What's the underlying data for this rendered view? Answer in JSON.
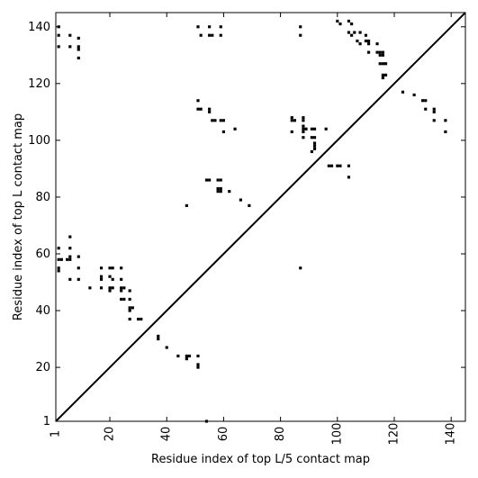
{
  "chart_data": {
    "type": "scatter",
    "title": "",
    "xlabel": "Residue index of top L/5 contact map",
    "ylabel": "Residue index of top L contact map",
    "xlim": [
      1,
      145
    ],
    "ylim": [
      1,
      145
    ],
    "xticks": [
      1,
      20,
      40,
      60,
      80,
      100,
      120,
      140
    ],
    "yticks": [
      1,
      20,
      40,
      60,
      80,
      100,
      120,
      140
    ],
    "grid": false,
    "marker": "square",
    "color": "#000000",
    "diagonal_line": true,
    "points": [
      [
        2,
        140
      ],
      [
        2,
        137
      ],
      [
        2,
        133
      ],
      [
        6,
        137
      ],
      [
        6,
        133
      ],
      [
        9,
        136
      ],
      [
        9,
        133
      ],
      [
        9,
        132
      ],
      [
        9,
        129
      ],
      [
        51,
        140
      ],
      [
        52,
        137
      ],
      [
        55,
        140
      ],
      [
        55,
        137
      ],
      [
        56,
        137
      ],
      [
        59,
        140
      ],
      [
        59,
        137
      ],
      [
        87,
        140
      ],
      [
        87,
        137
      ],
      [
        100,
        142
      ],
      [
        101,
        141
      ],
      [
        104,
        142
      ],
      [
        105,
        141
      ],
      [
        104,
        138
      ],
      [
        105,
        137
      ],
      [
        106,
        138
      ],
      [
        108,
        138
      ],
      [
        107,
        135
      ],
      [
        108,
        134
      ],
      [
        110,
        137
      ],
      [
        110,
        135
      ],
      [
        111,
        135
      ],
      [
        111,
        134
      ],
      [
        111,
        131
      ],
      [
        114,
        134
      ],
      [
        114,
        131
      ],
      [
        115,
        131
      ],
      [
        116,
        131
      ],
      [
        115,
        130
      ],
      [
        116,
        130
      ],
      [
        115,
        127
      ],
      [
        116,
        127
      ],
      [
        117,
        127
      ],
      [
        116,
        123
      ],
      [
        117,
        123
      ],
      [
        116,
        122
      ],
      [
        123,
        117
      ],
      [
        127,
        116
      ],
      [
        130,
        114
      ],
      [
        131,
        114
      ],
      [
        131,
        111
      ],
      [
        134,
        111
      ],
      [
        134,
        110
      ],
      [
        134,
        107
      ],
      [
        138,
        107
      ],
      [
        138,
        103
      ],
      [
        51,
        114
      ],
      [
        51,
        111
      ],
      [
        52,
        111
      ],
      [
        55,
        111
      ],
      [
        55,
        110
      ],
      [
        56,
        107
      ],
      [
        57,
        107
      ],
      [
        59,
        107
      ],
      [
        60,
        107
      ],
      [
        60,
        103
      ],
      [
        64,
        104
      ],
      [
        84,
        108
      ],
      [
        84,
        107
      ],
      [
        85,
        107
      ],
      [
        84,
        103
      ],
      [
        88,
        108
      ],
      [
        88,
        107
      ],
      [
        88,
        105
      ],
      [
        88,
        104
      ],
      [
        88,
        103
      ],
      [
        88,
        101
      ],
      [
        89,
        104
      ],
      [
        91,
        104
      ],
      [
        92,
        104
      ],
      [
        91,
        101
      ],
      [
        92,
        101
      ],
      [
        92,
        99
      ],
      [
        92,
        98
      ],
      [
        92,
        97
      ],
      [
        91,
        96
      ],
      [
        96,
        104
      ],
      [
        54,
        86
      ],
      [
        55,
        86
      ],
      [
        58,
        86
      ],
      [
        59,
        86
      ],
      [
        58,
        83
      ],
      [
        59,
        83
      ],
      [
        58,
        82
      ],
      [
        59,
        82
      ],
      [
        62,
        82
      ],
      [
        66,
        79
      ],
      [
        69,
        77
      ],
      [
        47,
        77
      ],
      [
        97,
        91
      ],
      [
        98,
        91
      ],
      [
        100,
        91
      ],
      [
        101,
        91
      ],
      [
        104,
        91
      ],
      [
        104,
        87
      ],
      [
        2,
        62
      ],
      [
        2,
        58
      ],
      [
        3,
        58
      ],
      [
        5,
        58
      ],
      [
        6,
        58
      ],
      [
        6,
        59
      ],
      [
        6,
        62
      ],
      [
        6,
        66
      ],
      [
        2,
        55
      ],
      [
        2,
        54
      ],
      [
        9,
        59
      ],
      [
        9,
        55
      ],
      [
        6,
        51
      ],
      [
        9,
        51
      ],
      [
        13,
        48
      ],
      [
        17,
        55
      ],
      [
        17,
        52
      ],
      [
        17,
        51
      ],
      [
        17,
        48
      ],
      [
        20,
        55
      ],
      [
        21,
        55
      ],
      [
        20,
        52
      ],
      [
        21,
        51
      ],
      [
        20,
        48
      ],
      [
        20,
        47
      ],
      [
        21,
        48
      ],
      [
        24,
        55
      ],
      [
        24,
        51
      ],
      [
        24,
        48
      ],
      [
        25,
        48
      ],
      [
        24,
        47
      ],
      [
        24,
        44
      ],
      [
        25,
        44
      ],
      [
        27,
        47
      ],
      [
        27,
        44
      ],
      [
        27,
        41
      ],
      [
        28,
        41
      ],
      [
        27,
        40
      ],
      [
        27,
        37
      ],
      [
        30,
        37
      ],
      [
        31,
        37
      ],
      [
        37,
        31
      ],
      [
        37,
        30
      ],
      [
        40,
        27
      ],
      [
        44,
        24
      ],
      [
        47,
        24
      ],
      [
        48,
        24
      ],
      [
        47,
        23
      ],
      [
        51,
        24
      ],
      [
        51,
        21
      ],
      [
        51,
        20
      ],
      [
        54,
        1
      ],
      [
        87,
        55
      ]
    ]
  }
}
